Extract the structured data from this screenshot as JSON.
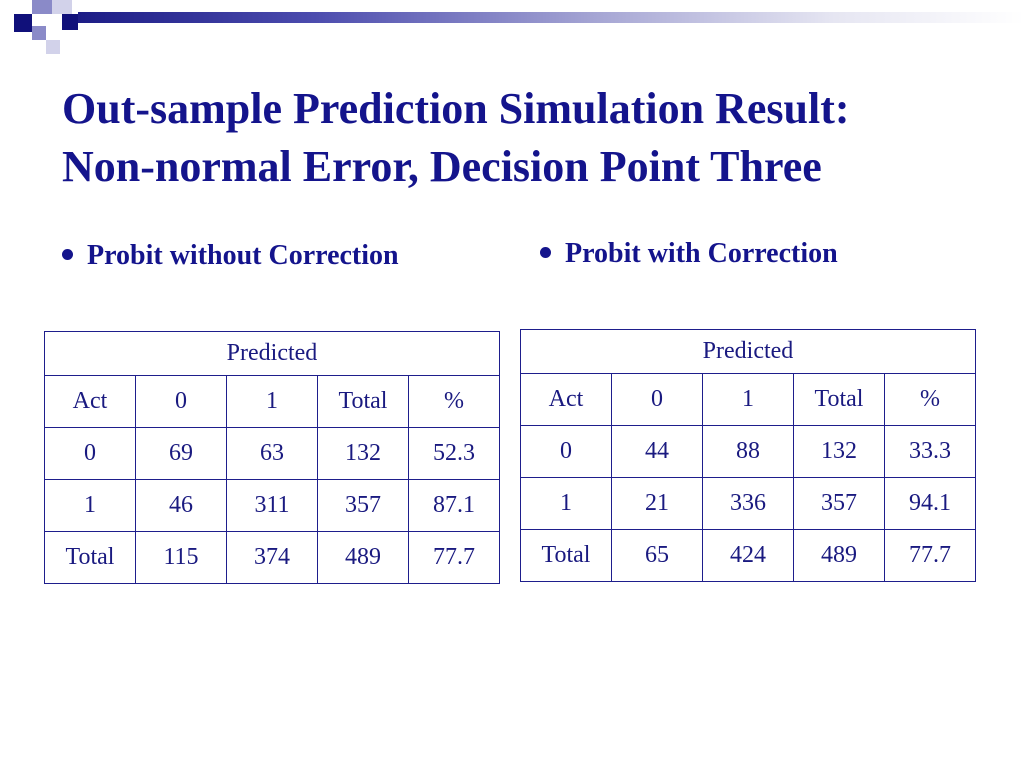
{
  "slide": {
    "title_line1": "Out-sample Prediction Simulation Result:",
    "title_line2": "Non-normal Error, Decision Point Three"
  },
  "sections": [
    {
      "heading": "Probit without Correction",
      "table": {
        "super_header": "Predicted",
        "columns": [
          "Act",
          "0",
          "1",
          "Total",
          "%"
        ],
        "rows": [
          [
            "0",
            "69",
            "63",
            "132",
            "52.3"
          ],
          [
            "1",
            "46",
            "311",
            "357",
            "87.1"
          ],
          [
            "Total",
            "115",
            "374",
            "489",
            "77.7"
          ]
        ]
      }
    },
    {
      "heading": "Probit with Correction",
      "table": {
        "super_header": "Predicted",
        "columns": [
          "Act",
          "0",
          "1",
          "Total",
          "%"
        ],
        "rows": [
          [
            "0",
            "44",
            "88",
            "132",
            "33.3"
          ],
          [
            "1",
            "21",
            "336",
            "357",
            "94.1"
          ],
          [
            "Total",
            "65",
            "424",
            "489",
            "77.7"
          ]
        ]
      }
    }
  ],
  "theme": {
    "accent": "#14148c",
    "table_text": "#1a1a80",
    "border": "#1e1e8c"
  }
}
